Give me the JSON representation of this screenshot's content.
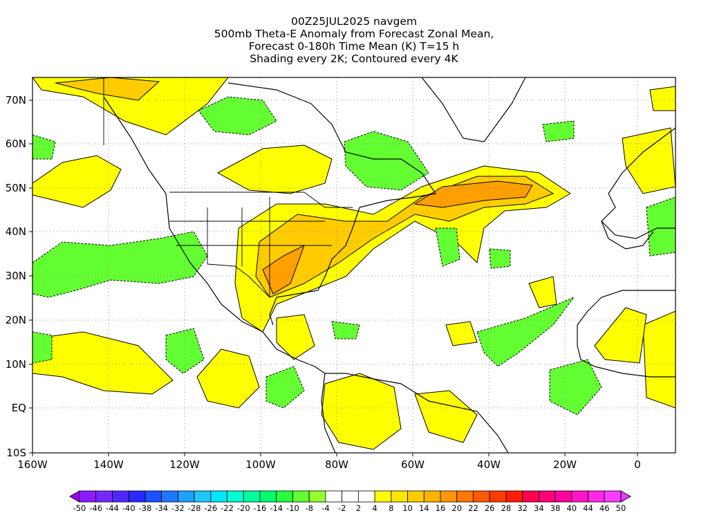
{
  "title": {
    "line1": "00Z25JUL2025 navgem",
    "line2": "500mb Theta-E Anomaly from Forecast Zonal Mean,",
    "line3": "Forecast 0-180h Time Mean (K) T=15 h",
    "line4": "Shading every 2K; Contoured every 4K"
  },
  "lat_labels": [
    "70N",
    "60N",
    "50N",
    "40N",
    "30N",
    "20N",
    "10N",
    "EQ",
    "10S"
  ],
  "lon_labels": [
    "160W",
    "140W",
    "120W",
    "100W",
    "80W",
    "60W",
    "40W",
    "20W",
    "0"
  ],
  "colorbar": {
    "labels": [
      "-50",
      "-46",
      "-44",
      "-40",
      "-38",
      "-34",
      "-32",
      "-28",
      "-26",
      "-22",
      "-20",
      "-16",
      "-14",
      "-10",
      "-8",
      "-4",
      "-2",
      "2",
      "4",
      "8",
      "10",
      "14",
      "16",
      "20",
      "22",
      "26",
      "28",
      "32",
      "34",
      "38",
      "40",
      "44",
      "46",
      "50"
    ],
    "colors": [
      "#a000ff",
      "#8c1cff",
      "#7828ff",
      "#5028ff",
      "#2828ff",
      "#1e50ff",
      "#1e78ff",
      "#1ea0ff",
      "#1ec8ff",
      "#00e6ff",
      "#00ffd2",
      "#00ffa0",
      "#00ff6e",
      "#28ff3c",
      "#64ff32",
      "#96ff32",
      "#ffffff",
      "#ffffff",
      "#ffffff",
      "#ffff00",
      "#ffe600",
      "#ffcc00",
      "#ffb400",
      "#ff9600",
      "#ff7800",
      "#ff5a00",
      "#ff3c00",
      "#ff1e00",
      "#ff0050",
      "#ff0078",
      "#ff00a0",
      "#ff14c8",
      "#ff28e6",
      "#ff3cff",
      "#e63cff"
    ]
  },
  "fill_colors": {
    "warm_weak": "#ffff00",
    "warm_mid": "#ffcc00",
    "warm_strong": "#ff9f00",
    "cool_weak": "#64ff32"
  }
}
